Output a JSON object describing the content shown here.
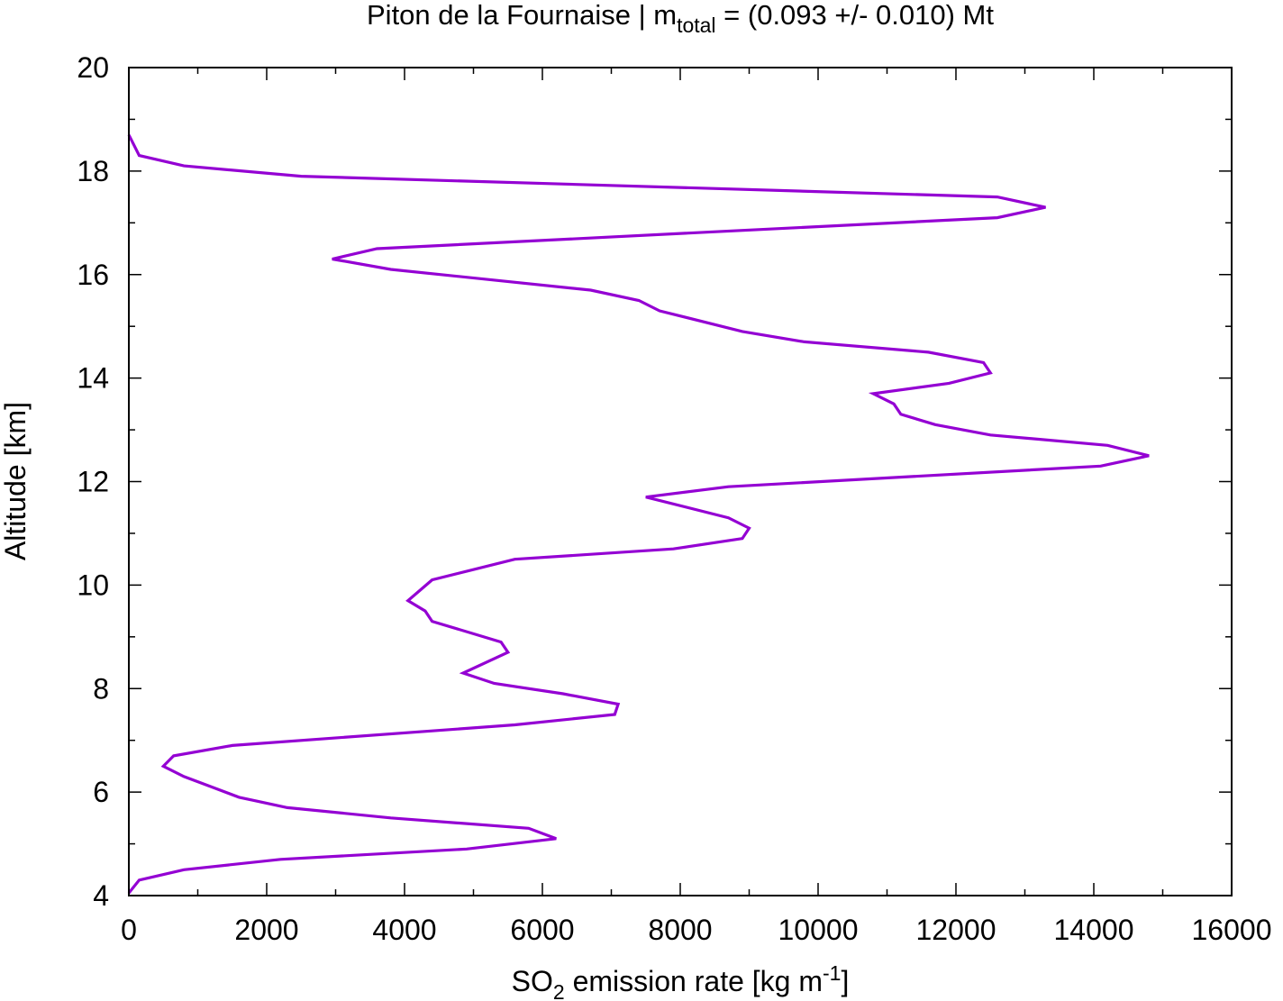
{
  "chart_data": {
    "type": "line",
    "title": {
      "prefix": "Piton de la Fournaise | m",
      "subscript": "total",
      "suffix": " = (0.093 +/- 0.010) Mt"
    },
    "xlabel": {
      "prefix": "SO",
      "subscript": "2",
      "middle": " emission rate [kg m",
      "superscript": "-1",
      "suffix": "]"
    },
    "ylabel": "Altitude [km]",
    "xlim": [
      0,
      16000
    ],
    "ylim": [
      4,
      20
    ],
    "x_ticks": [
      "0",
      "2000",
      "4000",
      "6000",
      "8000",
      "10000",
      "12000",
      "14000",
      "16000"
    ],
    "y_ticks": [
      "4",
      "6",
      "8",
      "10",
      "12",
      "14",
      "16",
      "18",
      "20"
    ],
    "grid": false,
    "series": [
      {
        "color": "#9400d3",
        "x": [
          0,
          150,
          800,
          2500,
          12600,
          13300,
          12600,
          3600,
          2950,
          3800,
          6700,
          7400,
          7700,
          8900,
          9800,
          11600,
          12400,
          12500,
          11900,
          10800,
          11100,
          11200,
          11700,
          12500,
          14200,
          14800,
          14100,
          8700,
          7500,
          8700,
          9000,
          8900,
          7900,
          5600,
          4400,
          4050,
          4300,
          4400,
          5400,
          5500,
          4850,
          5300,
          6300,
          7100,
          7050,
          5600,
          1500,
          650,
          500,
          800,
          1200,
          1600,
          2300,
          3800,
          5800,
          6200,
          4900,
          2200,
          800,
          150,
          0
        ],
        "y": [
          18.7,
          18.3,
          18.1,
          17.9,
          17.5,
          17.3,
          17.1,
          16.5,
          16.3,
          16.1,
          15.7,
          15.5,
          15.3,
          14.9,
          14.7,
          14.5,
          14.3,
          14.1,
          13.9,
          13.7,
          13.5,
          13.3,
          13.1,
          12.9,
          12.7,
          12.5,
          12.3,
          11.9,
          11.7,
          11.3,
          11.1,
          10.9,
          10.7,
          10.5,
          10.1,
          9.7,
          9.5,
          9.3,
          8.9,
          8.7,
          8.3,
          8.1,
          7.9,
          7.7,
          7.5,
          7.3,
          6.9,
          6.7,
          6.5,
          6.3,
          6.1,
          5.9,
          5.7,
          5.5,
          5.3,
          5.1,
          4.9,
          4.7,
          4.5,
          4.3,
          4.05
        ]
      }
    ]
  }
}
